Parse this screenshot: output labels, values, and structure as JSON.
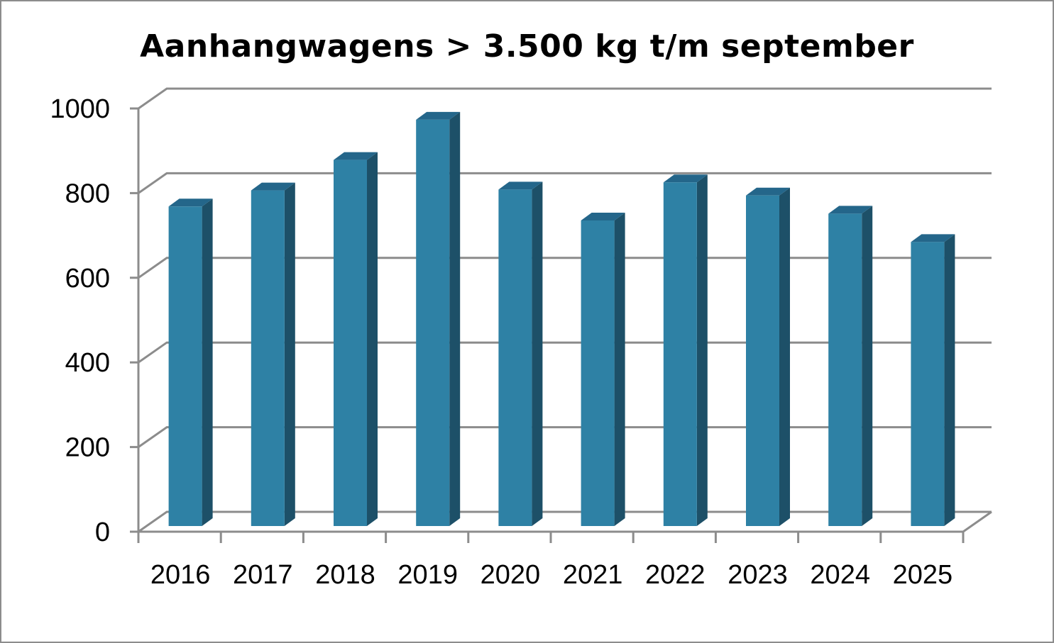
{
  "chart_data": {
    "type": "bar",
    "title": "Aanhangwagens > 3.500 kg t/m september",
    "xlabel": "",
    "ylabel": "",
    "categories": [
      "2016",
      "2017",
      "2018",
      "2019",
      "2020",
      "2021",
      "2022",
      "2023",
      "2024",
      "2025"
    ],
    "values": [
      755,
      793,
      865,
      960,
      795,
      722,
      812,
      781,
      738,
      671
    ],
    "ylim": [
      0,
      1000
    ],
    "yticks": [
      "0",
      "200",
      "400",
      "600",
      "800",
      "1000"
    ],
    "grid": true,
    "legend": "none",
    "three_d": true,
    "colors": {
      "bar_front": "#2e81a5",
      "bar_side": "#1d5068",
      "bar_top": "#24668a",
      "grid": "#8c8c8c"
    }
  }
}
